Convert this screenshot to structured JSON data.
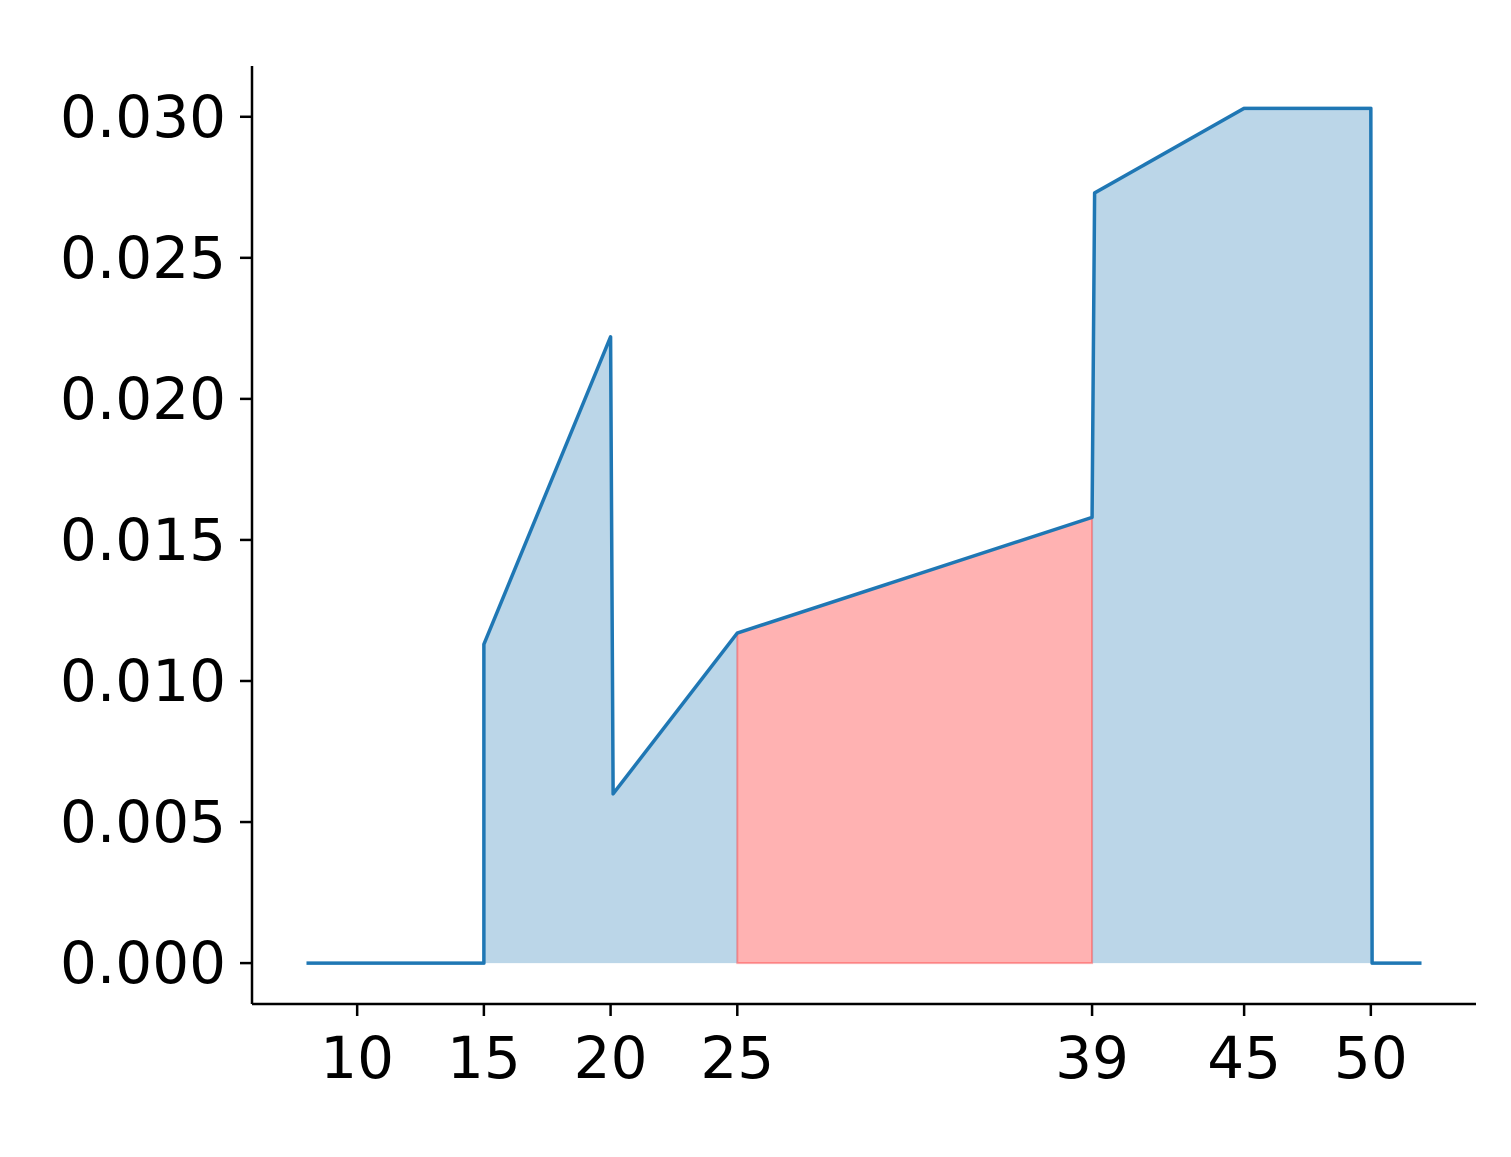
{
  "chart_data": {
    "type": "area",
    "title": "",
    "xlabel": "",
    "ylabel": "",
    "xlim": [
      5.85,
      54.15
    ],
    "ylim": [
      -0.00145,
      0.0318
    ],
    "x_ticks": [
      10,
      15,
      20,
      25,
      39,
      45,
      50
    ],
    "x_tick_labels": [
      "10",
      "15",
      "20",
      "25",
      "39",
      "45",
      "50"
    ],
    "y_ticks": [
      0.0,
      0.005,
      0.01,
      0.015,
      0.02,
      0.025,
      0.03
    ],
    "y_tick_labels": [
      "0.000",
      "0.005",
      "0.010",
      "0.015",
      "0.020",
      "0.025",
      "0.030"
    ],
    "grid": false,
    "legend": "none",
    "series": [
      {
        "color": "#1f77b4",
        "fill_color": "#1f77b4",
        "fill_opacity": 0.3,
        "points": [
          [
            8,
            0.0
          ],
          [
            15,
            0.0
          ],
          [
            15,
            0.0113
          ],
          [
            20,
            0.0222
          ],
          [
            20.1,
            0.006
          ],
          [
            25,
            0.0117
          ],
          [
            39,
            0.0158
          ],
          [
            39.1,
            0.0273
          ],
          [
            45,
            0.0303
          ],
          [
            50,
            0.0303
          ],
          [
            50.05,
            0.0
          ],
          [
            52,
            0.0
          ]
        ]
      }
    ],
    "highlight": {
      "x_range": [
        25,
        39
      ],
      "color": "#ff0000",
      "opacity": 0.3
    }
  }
}
